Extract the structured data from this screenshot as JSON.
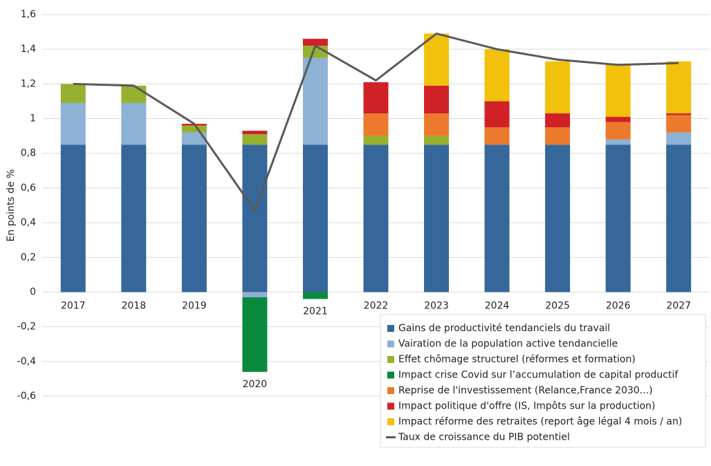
{
  "chart_data": {
    "type": "bar",
    "stacked": true,
    "y_label": "En points de %",
    "categories": [
      "2017",
      "2018",
      "2019",
      "2020",
      "2021",
      "2022",
      "2023",
      "2024",
      "2025",
      "2026",
      "2027"
    ],
    "series": [
      {
        "name": "Gains de productivité tendanciels du travail",
        "color": "#35679a",
        "values": [
          0.85,
          0.85,
          0.85,
          0.85,
          0.85,
          0.85,
          0.85,
          0.85,
          0.85,
          0.85,
          0.85
        ]
      },
      {
        "name": "Vairation de la population active tendancielle",
        "color": "#8eb1d6",
        "values": [
          0.24,
          0.24,
          0.07,
          -0.03,
          0.5,
          0,
          0,
          0,
          0,
          0.03,
          0.07
        ]
      },
      {
        "name": "Effet chômage structurel (réformes et formation)",
        "color": "#95b12f",
        "values": [
          0.11,
          0.1,
          0.04,
          0.06,
          0.07,
          0.05,
          0.05,
          0,
          0,
          0,
          0
        ]
      },
      {
        "name": "Impact crise Covid sur l’accumulation de capital productif",
        "color": "#0a8a3c",
        "values": [
          0,
          0,
          0,
          -0.43,
          -0.04,
          0,
          0,
          0,
          0,
          0,
          0
        ]
      },
      {
        "name": "Reprise de l'investissement (Relance,France 2030...)",
        "color": "#ec7a2c",
        "values": [
          0,
          0,
          0,
          0,
          0,
          0.13,
          0.13,
          0.1,
          0.1,
          0.1,
          0.1
        ]
      },
      {
        "name": "Impact politique d'offre (IS, Impôts sur la production)",
        "color": "#d02127",
        "values": [
          0,
          0,
          0.01,
          0.02,
          0.04,
          0.18,
          0.16,
          0.15,
          0.08,
          0.03,
          0.01
        ]
      },
      {
        "name": "Impact réforme des retraites (report âge légal 4 mois / an)",
        "color": "#f2c10b",
        "values": [
          0,
          0,
          0,
          0,
          0,
          0,
          0.3,
          0.3,
          0.3,
          0.3,
          0.3
        ]
      },
      {
        "name": "Taux de croissance du PIB potentiel",
        "type": "line",
        "color": "#595959",
        "values": [
          1.2,
          1.19,
          0.97,
          0.47,
          1.42,
          1.22,
          1.49,
          1.4,
          1.34,
          1.31,
          1.32
        ]
      }
    ],
    "ylim": [
      -0.6,
      1.6
    ],
    "yticks": [
      {
        "value": -0.6,
        "label": "-0,6"
      },
      {
        "value": -0.4,
        "label": "-0,4"
      },
      {
        "value": -0.2,
        "label": "-0,2"
      },
      0,
      {
        "value": 0.2,
        "label": "0,2"
      },
      {
        "value": 0.4,
        "label": "0,4"
      },
      {
        "value": 0.6,
        "label": "0,6"
      },
      {
        "value": 0.8,
        "label": "0,8"
      },
      1,
      {
        "value": 1.2,
        "label": "1,2"
      },
      {
        "value": 1.4,
        "label": "1,4"
      },
      {
        "value": 1.6,
        "label": "1,6"
      }
    ],
    "grid": true,
    "legend": "bottom-right"
  }
}
